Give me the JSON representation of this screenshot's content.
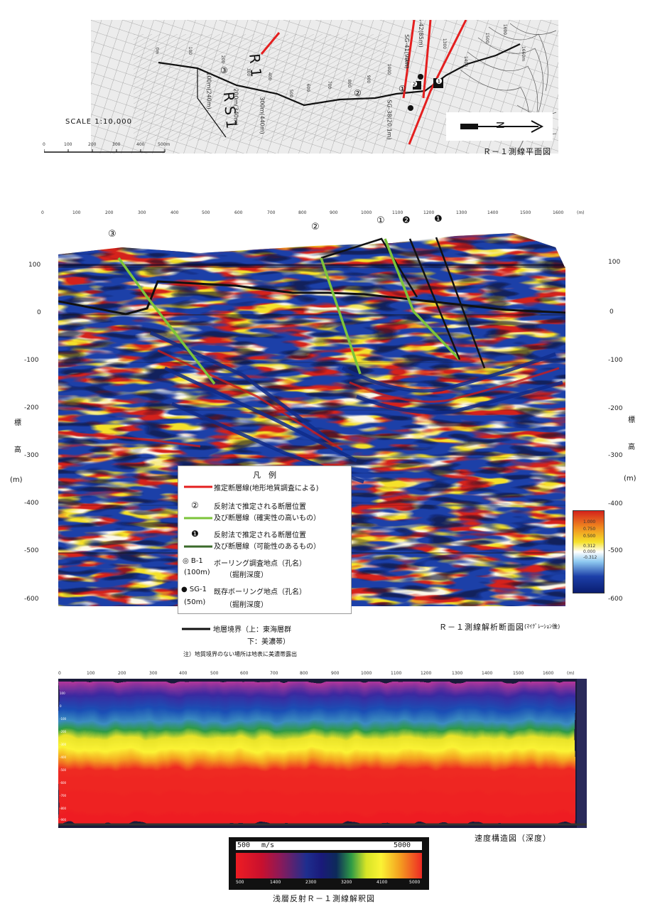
{
  "map": {
    "caption": "Ｒ－１測線平面図",
    "scale_text": "SCALE  1:10,000",
    "scale_ticks": [
      "0",
      "100",
      "200",
      "300",
      "400",
      "500m"
    ],
    "line_names": [
      "R 1",
      "R S 1"
    ],
    "route_km": [
      "0m",
      "100",
      "200",
      "300",
      "400",
      "500",
      "600",
      "700",
      "800",
      "900",
      "1000",
      "1100",
      "1300",
      "1400",
      "1500",
      "1600",
      "1660m"
    ],
    "wells": [
      "SG-42(85m)",
      "SG-41(99m)",
      "SG-38(20.1m)",
      "100m(240m)",
      "200m(340m)",
      "300m(440m)"
    ],
    "fault_marks": [
      "①",
      "②",
      "③",
      "❷",
      "❶"
    ],
    "north": "N"
  },
  "section": {
    "caption": "Ｒ－１測線解析断面図",
    "caption_note": "(ﾏｲｸﾞﾚｰｼｮﾝ後)",
    "x_ticks": [
      "0",
      "100",
      "200",
      "300",
      "400",
      "500",
      "600",
      "700",
      "800",
      "900",
      "1000",
      "1100",
      "1200",
      "1300",
      "1400",
      "1500",
      "1600"
    ],
    "x_unit": "(m)",
    "y_ticks": [
      "100",
      "0",
      "-100",
      "-200",
      "-300",
      "-400",
      "-500",
      "-600"
    ],
    "y_label_chars": [
      "標",
      "高",
      "(m)"
    ],
    "fault_marks": [
      "③",
      "②",
      "①",
      "❷",
      "❶"
    ],
    "colorbar_labels": [
      "1.000",
      "0.750",
      "0.500",
      "0.312",
      "0.000",
      "-0.312"
    ],
    "legend": {
      "title": "凡　例",
      "items": [
        {
          "text": "推定断層線(地形地質調査による)"
        },
        {
          "symbol": "②",
          "text": "反射法で推定される断層位置",
          "text2": "及び断層線（確実性の高いもの）"
        },
        {
          "symbol": "❶",
          "text": "反射法で推定される断層位置",
          "text2": "及び断層線（可能性のあるもの）"
        },
        {
          "symbol": "◎ B-1",
          "sub": "(100m)",
          "text": "ボーリング調査地点（孔名）",
          "text2": "（掘削深度）"
        },
        {
          "symbol": "● SG-1",
          "sub": "(50m)",
          "text": "既存ボーリング地点（孔名）",
          "text2": "（掘削深度）"
        },
        {
          "text": "地層境界（上：東海層群",
          "text2": "下：美濃帯）"
        }
      ],
      "note": "注）地質境界のない場所は地表に美濃帯露出"
    }
  },
  "velocity": {
    "caption": "速度構造図（深度）",
    "x_ticks": [
      "0",
      "100",
      "200",
      "300",
      "400",
      "500",
      "600",
      "700",
      "800",
      "900",
      "1000",
      "1100",
      "1200",
      "1300",
      "1400",
      "1500",
      "1600",
      "(m)"
    ],
    "y_ticks": [
      "100",
      "0",
      "-100",
      "-200",
      "-300",
      "-400",
      "-500",
      "-600",
      "-700",
      "-800",
      "-900"
    ],
    "bar_title_left": "500",
    "bar_unit": "m/s",
    "bar_title_right": "5000",
    "bar_ticks": [
      "500",
      "1400",
      "2300",
      "3200",
      "4100",
      "5000"
    ]
  },
  "page_caption": "浅層反射Ｒ－１測線解釈図",
  "colors": {
    "fault_red": "#e41f1f",
    "fault_green": "#7cc43a",
    "boundary": "#111111",
    "seis_blue": "#1c3fa8",
    "seis_red": "#d4231c",
    "seis_yellow": "#f5e12b"
  }
}
